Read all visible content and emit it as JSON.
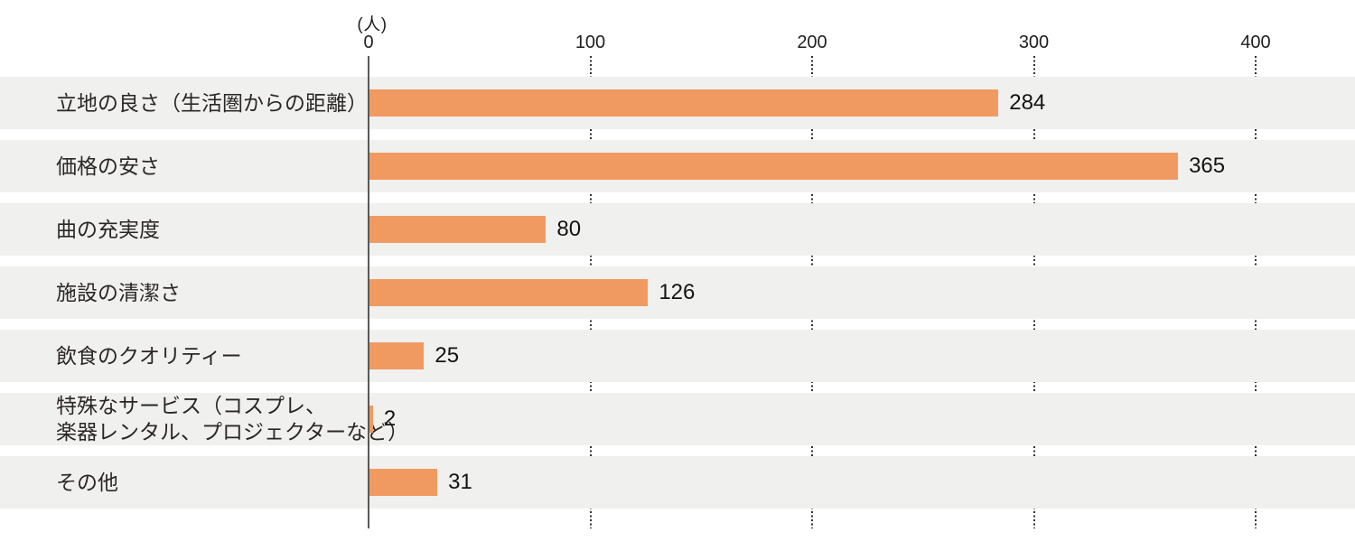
{
  "chart_data": {
    "type": "bar",
    "orientation": "horizontal",
    "title": "",
    "unit_label": "(人)",
    "x_axis": {
      "min": 0,
      "max": 400,
      "ticks": [
        0,
        100,
        200,
        300,
        400
      ]
    },
    "categories": [
      "立地の良さ（生活圏からの距離）",
      "価格の安さ",
      "曲の充実度",
      "施設の清潔さ",
      "飲食のクオリティー",
      "特殊なサービス（コスプレ、楽器レンタル、プロジェクターなど）",
      "その他"
    ],
    "values": [
      284,
      365,
      80,
      126,
      25,
      2,
      31
    ],
    "rows": [
      {
        "label": "立地の良さ（生活圏からの距離）",
        "value": 284
      },
      {
        "label": "価格の安さ",
        "value": 365
      },
      {
        "label": "曲の充実度",
        "value": 80
      },
      {
        "label": "施設の清潔さ",
        "value": 126
      },
      {
        "label": "飲食のクオリティー",
        "value": 25
      },
      {
        "label": "特殊なサービス（コスプレ、\n楽器レンタル、プロジェクターなど）",
        "value": 2
      },
      {
        "label": "その他",
        "value": 31
      }
    ],
    "legend": null,
    "grid": "dotted-vertical-in-row-gaps",
    "colors": {
      "bar": "#f09a62",
      "row_band": "#f0f0ef",
      "axis_line": "#595959",
      "grid_dots": "#2e2e2e",
      "label_text": "#2b2725",
      "value_text": "#141414"
    }
  }
}
